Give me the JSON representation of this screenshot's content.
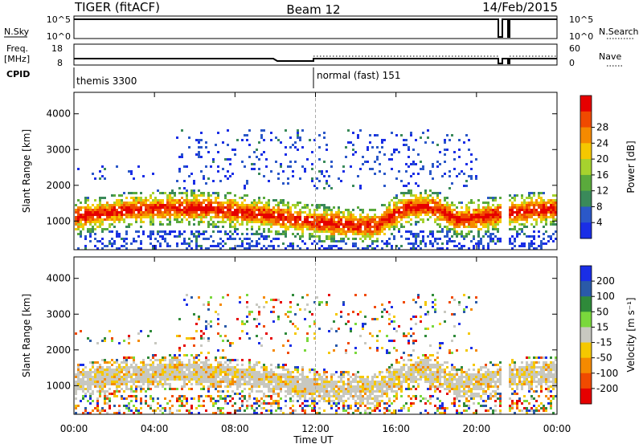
{
  "header": {
    "radar": "TIGER (fitACF)",
    "beam": "Beam 12",
    "date": "14/Feb/2015"
  },
  "strips": {
    "nsky_label": "N.Sky",
    "nsky_ticks": [
      "10^5",
      "10^0"
    ],
    "nsearch_label": "N.Search",
    "nsearch_ticks": [
      "10^5",
      "10^0"
    ],
    "freq_label_1": "Freq.",
    "freq_label_2": "[MHz]",
    "freq_ticks": [
      "18",
      "8"
    ],
    "nave_label": "Nave",
    "nave_ticks": [
      "60",
      "0"
    ],
    "cpid_label": "CPID",
    "cpid_segments": [
      "themis 3300",
      "normal (fast) 151"
    ]
  },
  "chart_data": [
    {
      "type": "heatmap",
      "panel": "power",
      "ylabel": "Slant Range [km]",
      "y_ticks": [
        1000,
        2000,
        3000,
        4000
      ],
      "ylim": [
        200,
        4600
      ],
      "x_ticks": [
        "00:00",
        "04:00",
        "08:00",
        "12:00",
        "16:00",
        "20:00",
        "00:00"
      ],
      "xlim_hours": [
        0,
        24
      ],
      "data_gap_hours": [
        21.2,
        21.6
      ],
      "colorbar": {
        "label": "Power [dB]",
        "ticks": [
          "4",
          "8",
          "12",
          "16",
          "20",
          "24",
          "28"
        ],
        "colors": [
          "#1a2ee6",
          "#2b58c8",
          "#3a8a5a",
          "#5aaa3c",
          "#a6d22e",
          "#f5c800",
          "#f58a00",
          "#f04a00",
          "#e60000"
        ]
      }
    },
    {
      "type": "heatmap",
      "panel": "velocity",
      "ylabel": "Slant Range [km]",
      "y_ticks": [
        1000,
        2000,
        3000,
        4000
      ],
      "ylim": [
        200,
        4600
      ],
      "x_ticks": [
        "00:00",
        "04:00",
        "08:00",
        "12:00",
        "16:00",
        "20:00",
        "00:00"
      ],
      "xlabel": "Time UT",
      "xlim_hours": [
        0,
        24
      ],
      "colorbar": {
        "label": "Velocity [m s⁻¹]",
        "ticks": [
          "200",
          "100",
          "50",
          "15",
          "-15",
          "-50",
          "-100",
          "-200"
        ],
        "colors": [
          "#1a2ee6",
          "#2a5aa8",
          "#2f8a3a",
          "#7ad83c",
          "#c8c8c0",
          "#f5c800",
          "#f58a00",
          "#f04a00",
          "#e60000"
        ]
      }
    }
  ]
}
